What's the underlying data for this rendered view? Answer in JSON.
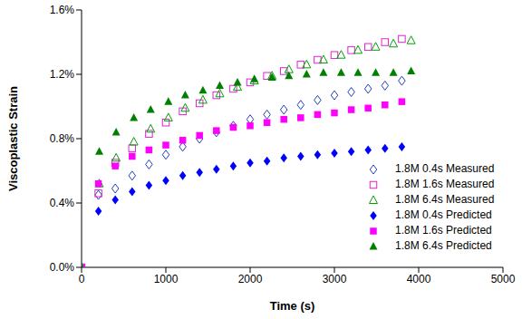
{
  "chart_data": {
    "type": "scatter",
    "x_label": "Time (s)",
    "y_label": "Viscoplastic Strain",
    "xlim": [
      0,
      5000
    ],
    "xticks": [
      0,
      1000,
      2000,
      3000,
      4000,
      5000
    ],
    "ylim": [
      0,
      1.6
    ],
    "yticks": [
      {
        "value": 0,
        "label": "0.0%"
      },
      {
        "value": 0.4,
        "label": "0.4%"
      },
      {
        "value": 0.8,
        "label": "0.8%"
      },
      {
        "value": 1.2,
        "label": "1.2%"
      },
      {
        "value": 1.6,
        "label": "1.6%"
      }
    ],
    "grid": false,
    "legend": "bottom-right",
    "series": [
      {
        "name": "1.8M 0.4s Measured",
        "color": "#1f3fbf",
        "marker": "open_diamond",
        "x": [
          0,
          200,
          400,
          600,
          800,
          1000,
          1200,
          1400,
          1600,
          1800,
          2000,
          2200,
          2400,
          2600,
          2800,
          3000,
          3200,
          3400,
          3600,
          3800
        ],
        "values": [
          0,
          0.45,
          0.49,
          0.57,
          0.64,
          0.7,
          0.75,
          0.8,
          0.84,
          0.88,
          0.92,
          0.95,
          0.98,
          1.01,
          1.04,
          1.07,
          1.09,
          1.11,
          1.13,
          1.16
        ]
      },
      {
        "name": "1.8M 1.6s Measured",
        "color": "#e020d8",
        "marker": "open_square",
        "x": [
          0,
          200,
          400,
          600,
          800,
          1000,
          1200,
          1400,
          1600,
          1800,
          2000,
          2200,
          2400,
          2600,
          2800,
          3000,
          3200,
          3400,
          3600,
          3800
        ],
        "values": [
          0,
          0.46,
          0.65,
          0.74,
          0.83,
          0.9,
          0.97,
          1.02,
          1.07,
          1.11,
          1.15,
          1.19,
          1.22,
          1.26,
          1.29,
          1.32,
          1.35,
          1.37,
          1.4,
          1.42
        ]
      },
      {
        "name": "1.8M 6.4s Measured",
        "color": "#00a000",
        "marker": "open_triangle",
        "x": [
          0,
          210,
          410,
          620,
          820,
          1030,
          1230,
          1440,
          1640,
          1850,
          2050,
          2260,
          2460,
          2670,
          2870,
          3080,
          3280,
          3490,
          3700,
          3910
        ],
        "values": [
          0,
          0.52,
          0.68,
          0.78,
          0.86,
          0.93,
          0.99,
          1.04,
          1.08,
          1.12,
          1.16,
          1.19,
          1.23,
          1.26,
          1.29,
          1.32,
          1.35,
          1.37,
          1.39,
          1.41
        ]
      },
      {
        "name": "1.8M 0.4s Predicted",
        "color": "#0000ff",
        "marker": "diamond",
        "x": [
          0,
          200,
          400,
          600,
          800,
          1000,
          1200,
          1400,
          1600,
          1800,
          2000,
          2200,
          2400,
          2600,
          2800,
          3000,
          3200,
          3400,
          3600,
          3800
        ],
        "values": [
          0,
          0.35,
          0.42,
          0.47,
          0.51,
          0.54,
          0.57,
          0.59,
          0.61,
          0.63,
          0.65,
          0.66,
          0.68,
          0.69,
          0.7,
          0.71,
          0.72,
          0.73,
          0.74,
          0.75
        ]
      },
      {
        "name": "1.8M 1.6s Predicted",
        "color": "#ff00ff",
        "marker": "square",
        "x": [
          0,
          200,
          400,
          600,
          800,
          1000,
          1200,
          1400,
          1600,
          1800,
          2000,
          2200,
          2400,
          2600,
          2800,
          3000,
          3200,
          3400,
          3600,
          3800
        ],
        "values": [
          0,
          0.52,
          0.63,
          0.69,
          0.73,
          0.76,
          0.79,
          0.82,
          0.85,
          0.87,
          0.88,
          0.9,
          0.92,
          0.93,
          0.95,
          0.96,
          0.98,
          0.99,
          1.01,
          1.03
        ]
      },
      {
        "name": "1.8M 6.4s Predicted",
        "color": "#008000",
        "marker": "triangle",
        "x": [
          0,
          210,
          410,
          620,
          820,
          1030,
          1230,
          1440,
          1640,
          1850,
          2050,
          2260,
          2460,
          2670,
          2870,
          3080,
          3280,
          3490,
          3700,
          3910
        ],
        "values": [
          0,
          0.72,
          0.84,
          0.93,
          0.98,
          1.03,
          1.07,
          1.1,
          1.13,
          1.15,
          1.17,
          1.18,
          1.19,
          1.2,
          1.21,
          1.21,
          1.21,
          1.21,
          1.21,
          1.22
        ]
      }
    ]
  }
}
